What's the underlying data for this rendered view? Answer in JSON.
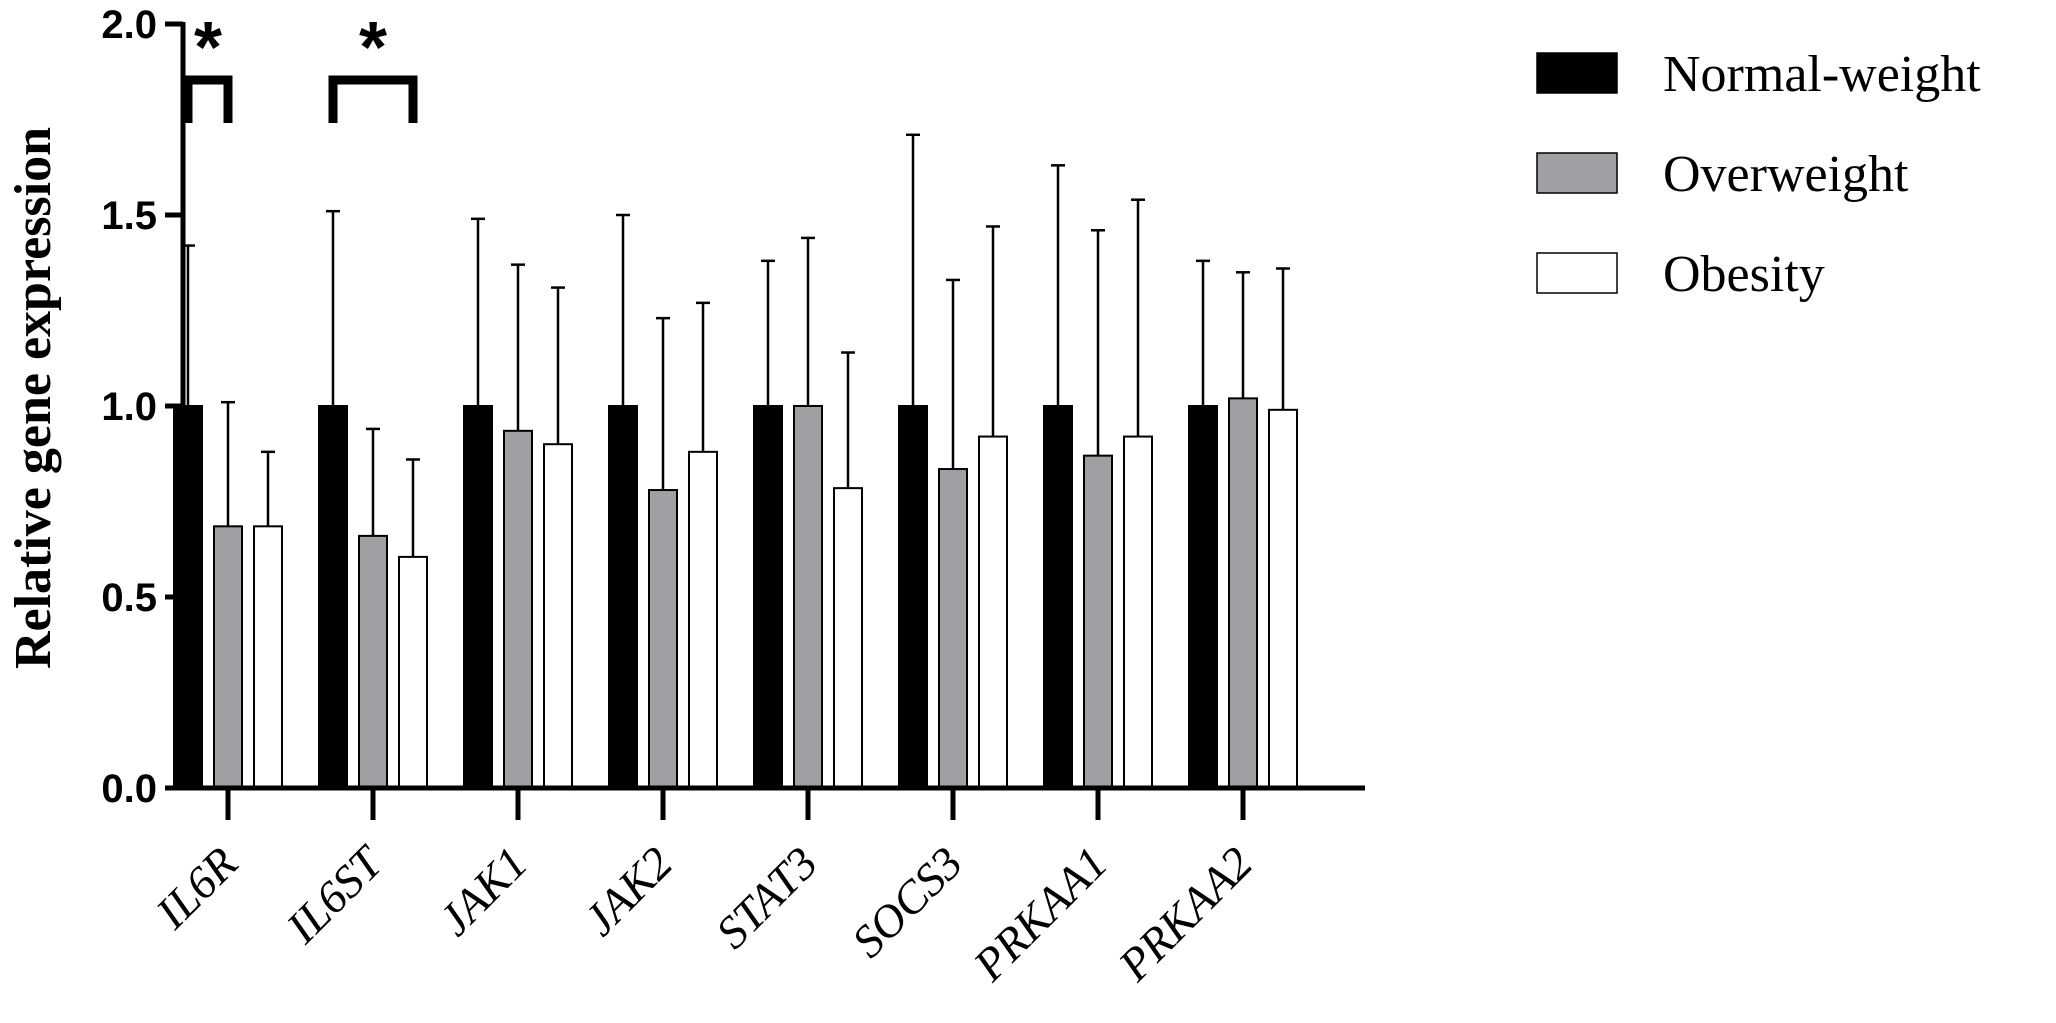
{
  "chart_data": {
    "type": "bar",
    "ylabel": "Relative gene expression",
    "xlabel": "",
    "ylim": [
      0,
      2.0
    ],
    "yticks": [
      "0.0",
      "0.5",
      "1.0",
      "1.5",
      "2.0"
    ],
    "grid": false,
    "legend_position": "top-right",
    "categories": [
      "IL6R",
      "IL6ST",
      "JAK1",
      "JAK2",
      "STAT3",
      "SOCS3",
      "PRKAA1",
      "PRKAA2"
    ],
    "series": [
      {
        "name": "Normal-weight",
        "color": "#000000",
        "values": [
          1.0,
          1.0,
          1.0,
          1.0,
          1.0,
          1.0,
          1.0,
          1.0
        ],
        "error_upper": [
          1.42,
          1.51,
          1.49,
          1.5,
          1.38,
          1.71,
          1.63,
          1.38
        ]
      },
      {
        "name": "Overweight",
        "color": "#a0a0a4",
        "values": [
          0.685,
          0.66,
          0.935,
          0.78,
          1.0,
          0.835,
          0.87,
          1.02
        ],
        "error_upper": [
          1.01,
          0.94,
          1.37,
          1.23,
          1.44,
          1.33,
          1.46,
          1.35
        ]
      },
      {
        "name": "Obesity",
        "color": "#ffffff",
        "values": [
          0.685,
          0.605,
          0.9,
          0.88,
          0.785,
          0.92,
          0.92,
          0.99
        ],
        "error_upper": [
          0.88,
          0.86,
          1.31,
          1.27,
          1.14,
          1.47,
          1.54,
          1.36
        ]
      }
    ],
    "annotations": [
      {
        "text": "*",
        "category": "IL6R",
        "from_series": 0,
        "to_series": 1
      },
      {
        "text": "*",
        "category": "IL6ST",
        "from_series": 0,
        "to_series": 2
      }
    ]
  }
}
